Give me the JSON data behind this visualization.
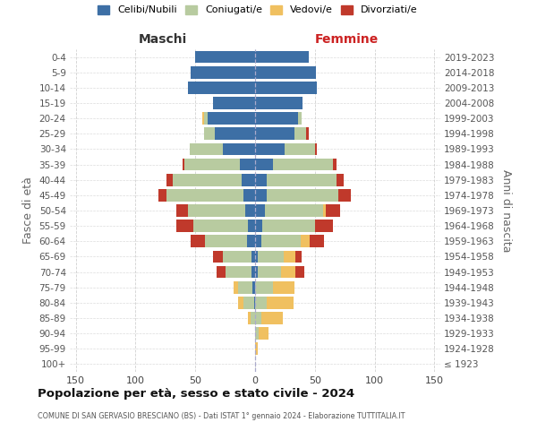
{
  "age_groups": [
    "100+",
    "95-99",
    "90-94",
    "85-89",
    "80-84",
    "75-79",
    "70-74",
    "65-69",
    "60-64",
    "55-59",
    "50-54",
    "45-49",
    "40-44",
    "35-39",
    "30-34",
    "25-29",
    "20-24",
    "15-19",
    "10-14",
    "5-9",
    "0-4"
  ],
  "birth_years": [
    "≤ 1923",
    "1924-1928",
    "1929-1933",
    "1934-1938",
    "1939-1943",
    "1944-1948",
    "1949-1953",
    "1954-1958",
    "1959-1963",
    "1964-1968",
    "1969-1973",
    "1974-1978",
    "1979-1983",
    "1984-1988",
    "1989-1993",
    "1994-1998",
    "1999-2003",
    "2004-2008",
    "2009-2013",
    "2014-2018",
    "2019-2023"
  ],
  "colors": {
    "celibi": "#3d6fa5",
    "coniugati": "#b8cba0",
    "vedovi": "#f0c060",
    "divorziati": "#c0392b",
    "background": "#ffffff",
    "grid": "#cccccc"
  },
  "maschi_cel": [
    0,
    0,
    0,
    0,
    1,
    2,
    3,
    3,
    7,
    6,
    8,
    10,
    11,
    13,
    27,
    34,
    40,
    35,
    56,
    54,
    50
  ],
  "maschi_con": [
    0,
    0,
    0,
    4,
    9,
    12,
    22,
    24,
    35,
    46,
    48,
    64,
    58,
    46,
    28,
    9,
    3,
    0,
    0,
    0,
    0
  ],
  "maschi_ved": [
    0,
    0,
    0,
    2,
    4,
    4,
    0,
    0,
    0,
    0,
    0,
    0,
    0,
    0,
    0,
    0,
    1,
    0,
    0,
    0,
    0
  ],
  "maschi_div": [
    0,
    0,
    0,
    0,
    0,
    0,
    7,
    8,
    12,
    14,
    10,
    7,
    5,
    2,
    0,
    0,
    0,
    0,
    0,
    0,
    0
  ],
  "femmine_cel": [
    0,
    0,
    0,
    0,
    0,
    0,
    2,
    2,
    5,
    6,
    8,
    10,
    10,
    15,
    25,
    33,
    36,
    40,
    52,
    51,
    45
  ],
  "femmine_con": [
    0,
    0,
    3,
    5,
    10,
    15,
    20,
    22,
    33,
    44,
    49,
    60,
    58,
    50,
    25,
    10,
    3,
    0,
    0,
    0,
    0
  ],
  "femmine_ved": [
    0,
    2,
    8,
    18,
    22,
    18,
    12,
    10,
    8,
    0,
    2,
    0,
    0,
    0,
    0,
    0,
    0,
    0,
    0,
    0,
    0
  ],
  "femmine_div": [
    0,
    0,
    0,
    0,
    0,
    0,
    7,
    5,
    12,
    15,
    12,
    10,
    6,
    3,
    2,
    2,
    0,
    0,
    0,
    0,
    0
  ],
  "xlim": 155,
  "title": "Popolazione per età, sesso e stato civile - 2024",
  "subtitle": "COMUNE DI SAN GERVASIO BRESCIANO (BS) - Dati ISTAT 1° gennaio 2024 - Elaborazione TUTTITALIA.IT",
  "header_left": "Maschi",
  "header_right": "Femmine",
  "ylabel_left": "Fasce di età",
  "ylabel_right": "Anni di nascita",
  "legend_labels": [
    "Celibi/Nubili",
    "Coniugati/e",
    "Vedovi/e",
    "Divorziati/e"
  ]
}
